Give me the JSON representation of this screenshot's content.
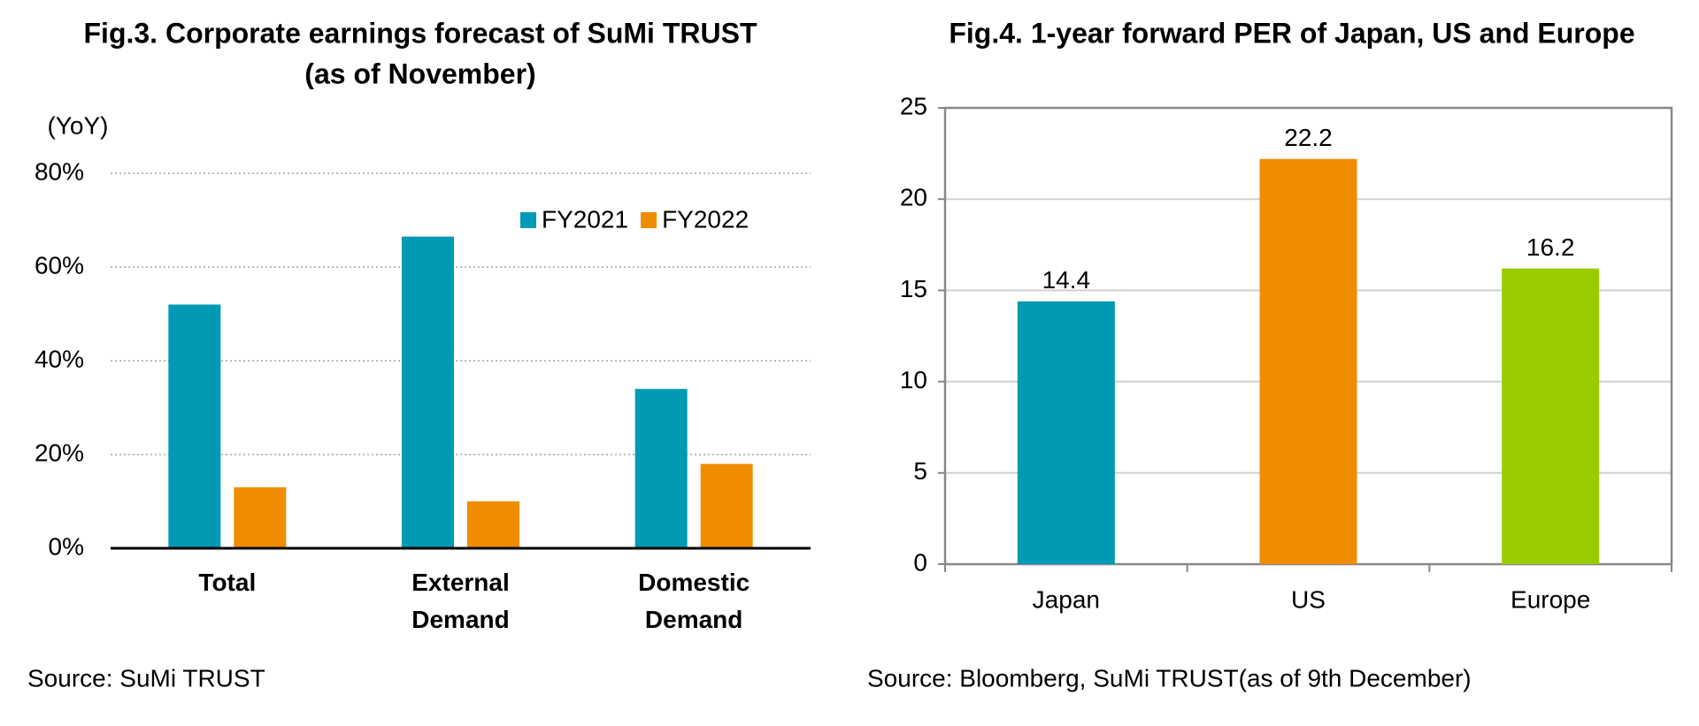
{
  "chart_data": [
    {
      "type": "grouped-bar",
      "title": "Fig.3. Corporate earnings forecast of SuMi TRUST",
      "subtitle": "(as of November)",
      "y_label": "(YoY)",
      "source": "Source: SuMi TRUST",
      "categories": [
        "Total",
        "External Demand",
        "Domestic Demand"
      ],
      "series": [
        {
          "name": "FY2021",
          "color": "#009ab4",
          "values": [
            52,
            66.5,
            34
          ]
        },
        {
          "name": "FY2022",
          "color": "#f08c00",
          "values": [
            13,
            10,
            18
          ]
        }
      ],
      "ylim": [
        0,
        80
      ],
      "yticks": [
        {
          "value": 0,
          "label": "0%"
        },
        {
          "value": 20,
          "label": "20%"
        },
        {
          "value": 40,
          "label": "40%"
        },
        {
          "value": 60,
          "label": "60%"
        },
        {
          "value": 80,
          "label": "80%"
        }
      ],
      "grid": true
    },
    {
      "type": "bar",
      "title": "Fig.4. 1-year forward PER of Japan, US and Europe",
      "source": "Source: Bloomberg, SuMi TRUST(as of 9th December)",
      "categories": [
        "Japan",
        "US",
        "Europe"
      ],
      "values": [
        14.4,
        22.2,
        16.2
      ],
      "colors": [
        "#009ab4",
        "#f08c00",
        "#99cc00"
      ],
      "ylim": [
        0,
        25
      ],
      "yticks": [
        0,
        5,
        10,
        15,
        20,
        25
      ],
      "grid": true
    }
  ]
}
